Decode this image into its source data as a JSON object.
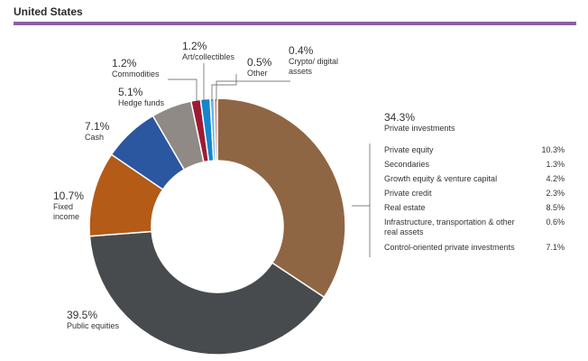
{
  "header": {
    "title": "United States",
    "accent": "#8b5fa8"
  },
  "chart_data": {
    "type": "pie",
    "subtype": "donut",
    "title": "United States",
    "slices": [
      {
        "label": "Private investments",
        "value": 34.3,
        "display": "34.3%",
        "color": "#8f6643"
      },
      {
        "label": "Public equities",
        "value": 39.5,
        "display": "39.5%",
        "color": "#474b4e"
      },
      {
        "label": "Fixed income",
        "value": 10.7,
        "display": "10.7%",
        "color": "#b35b17"
      },
      {
        "label": "Cash",
        "value": 7.1,
        "display": "7.1%",
        "color": "#2b56a0"
      },
      {
        "label": "Hedge funds",
        "value": 5.1,
        "display": "5.1%",
        "color": "#8f8a86"
      },
      {
        "label": "Commodities",
        "value": 1.2,
        "display": "1.2%",
        "color": "#9d1b33"
      },
      {
        "label": "Art/collectibles",
        "value": 1.2,
        "display": "1.2%",
        "color": "#1386cf"
      },
      {
        "label": "Other",
        "value": 0.5,
        "display": "0.5%",
        "color": "#66b6e0"
      },
      {
        "label": "Crypto/ digital assets",
        "value": 0.4,
        "display": "0.4%",
        "color": "#d98a80"
      }
    ],
    "breakdown": {
      "parent": "Private investments",
      "items": [
        {
          "label": "Private equity",
          "display": "10.3%"
        },
        {
          "label": "Secondaries",
          "display": "1.3%"
        },
        {
          "label": "Growth equity & venture capital",
          "display": "4.2%"
        },
        {
          "label": "Private credit",
          "display": "2.3%"
        },
        {
          "label": "Real estate",
          "display": "8.5%"
        },
        {
          "label": "Infrastructure, transportation & other real assets",
          "display": "0.6%"
        },
        {
          "label": "Control-oriented private investments",
          "display": "7.1%"
        }
      ]
    }
  }
}
